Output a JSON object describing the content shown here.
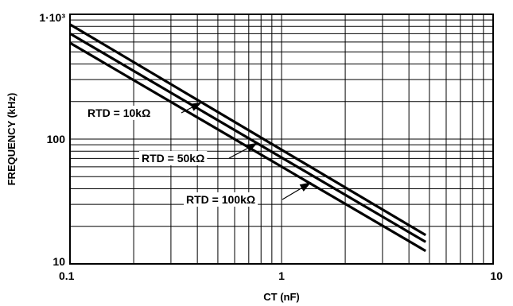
{
  "chart_data": {
    "type": "line",
    "xlabel": "CT (nF)",
    "ylabel": "FREQUENCY (kHz)",
    "x_scale": "log",
    "y_scale": "log",
    "xlim": [
      0.1,
      10
    ],
    "ylim": [
      10,
      1000
    ],
    "grid": true,
    "x_ticks": [
      {
        "value": 0.1,
        "label": "0.1"
      },
      {
        "value": 1,
        "label": "1"
      },
      {
        "value": 10,
        "label": "10"
      }
    ],
    "y_ticks": [
      {
        "value": 10,
        "label": "10"
      },
      {
        "value": 100,
        "label": "100"
      },
      {
        "value": 1000,
        "label": "1·10³"
      }
    ],
    "series": [
      {
        "name": "RTD = 10kΩ",
        "x": [
          0.1,
          4.8
        ],
        "y": [
          830,
          17.0
        ]
      },
      {
        "name": "RTD = 50kΩ",
        "x": [
          0.1,
          4.8
        ],
        "y": [
          700,
          15.0
        ]
      },
      {
        "name": "RTD = 100kΩ",
        "x": [
          0.1,
          4.8
        ],
        "y": [
          590,
          12.7
        ]
      }
    ],
    "annotations": [
      {
        "text": "RTD = 10kΩ",
        "series": 0,
        "arrow_to": [
          0.42,
          197
        ]
      },
      {
        "text": "RTD = 50kΩ",
        "series": 1,
        "arrow_to": [
          0.77,
          93
        ]
      },
      {
        "text": "RTD = 100kΩ",
        "series": 2,
        "arrow_to": [
          1.38,
          45
        ]
      }
    ],
    "colors": {
      "line": "#000000",
      "grid": "#000000",
      "background": "#ffffff"
    }
  }
}
